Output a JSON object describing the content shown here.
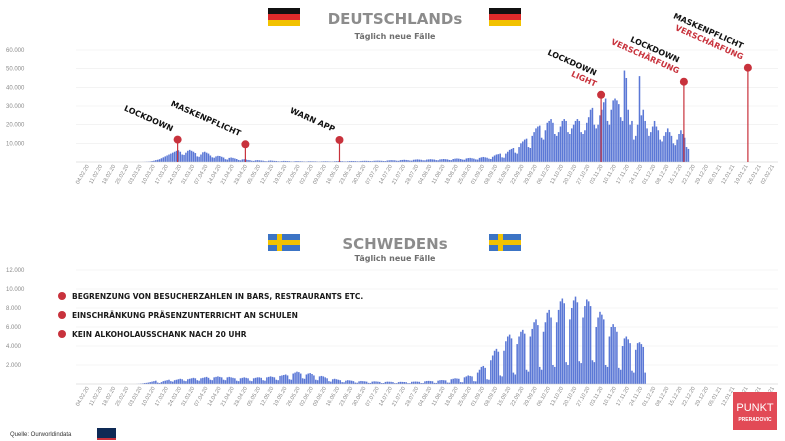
{
  "colors": {
    "bars": "#5b78d6",
    "marker": "#c8323c",
    "annotation_dark": "#111111",
    "annotation_red": "#c8323c",
    "logo_bg": "#e24a56"
  },
  "source_label": "Quelle: Ourworldindata",
  "logo": {
    "line1": "PUNKT",
    "line2": "PRERADOVIC"
  },
  "chart_data": [
    {
      "type": "bar",
      "title": "DEUTSCHLANDs",
      "subtitle": "Täglich neue Fälle",
      "flag": "germany",
      "ylim": [
        0,
        60000
      ],
      "yticks": [
        10000,
        20000,
        30000,
        40000,
        50000,
        60000
      ],
      "ytick_labels": [
        "10.000",
        "20.000",
        "30.000",
        "40.000",
        "50.000",
        "60.000"
      ],
      "x_range": [
        "2020-01-28",
        "2021-02-04"
      ],
      "xtick_labels": [
        "04.02.20",
        "11.02.20",
        "18.02.20",
        "25.02.20",
        "03.03.20",
        "10.03.20",
        "17.03.20",
        "24.03.20",
        "31.03.20",
        "07.04.20",
        "14.04.20",
        "21.04.20",
        "28.04.20",
        "05.05.20",
        "12.05.20",
        "19.05.20",
        "26.05.20",
        "02.06.20",
        "09.06.20",
        "16.06.20",
        "23.06.20",
        "30.06.20",
        "07.07.20",
        "14.07.20",
        "21.07.20",
        "28.07.20",
        "04.08.20",
        "11.08.20",
        "18.08.20",
        "25.08.20",
        "01.09.20",
        "08.09.20",
        "15.09.20",
        "22.09.20",
        "29.09.20",
        "06.10.20",
        "13.10.20",
        "20.10.20",
        "27.10.20",
        "03.11.20",
        "10.11.20",
        "17.11.20",
        "24.11.20",
        "01.12.20",
        "08.12.20",
        "15.12.20",
        "22.12.20",
        "29.12.20",
        "05.01.21",
        "12.01.21",
        "19.01.21",
        "26.01.21",
        "02.02.21"
      ],
      "series": [
        {
          "values": [
            0,
            0,
            0,
            0,
            0,
            0,
            0,
            0,
            0,
            0,
            0,
            0,
            0,
            0,
            0,
            0,
            0,
            0,
            0,
            0,
            0,
            0,
            0,
            0,
            0,
            0,
            0,
            0,
            0,
            0,
            0,
            0,
            10,
            20,
            30,
            50,
            80,
            150,
            200,
            300,
            500,
            700,
            1000,
            1200,
            1500,
            2000,
            2500,
            3000,
            3500,
            4000,
            4500,
            5000,
            5500,
            6000,
            6300,
            5500,
            4000,
            3800,
            5000,
            6000,
            6500,
            6000,
            5500,
            4800,
            3000,
            2800,
            4000,
            5200,
            5500,
            5000,
            4500,
            3500,
            2500,
            2300,
            3000,
            3300,
            3200,
            2800,
            2400,
            1500,
            1300,
            2200,
            2400,
            2200,
            1900,
            1600,
            1100,
            900,
            1400,
            1500,
            1300,
            1100,
            1000,
            700,
            600,
            900,
            1000,
            900,
            800,
            700,
            500,
            400,
            700,
            800,
            700,
            600,
            550,
            400,
            350,
            500,
            600,
            550,
            500,
            450,
            300,
            300,
            450,
            500,
            450,
            400,
            350,
            280,
            250,
            380,
            420,
            400,
            380,
            350,
            250,
            230,
            330,
            380,
            420,
            400,
            350,
            300,
            280,
            400,
            450,
            500,
            480,
            450,
            350,
            330,
            420,
            500,
            550,
            520,
            480,
            400,
            380,
            550,
            600,
            650,
            620,
            580,
            500,
            450,
            650,
            700,
            750,
            700,
            650,
            550,
            500,
            800,
            900,
            1000,
            950,
            900,
            700,
            650,
            1000,
            1100,
            1200,
            1100,
            1000,
            800,
            750,
            1200,
            1300,
            1400,
            1300,
            1200,
            950,
            900,
            1300,
            1400,
            1500,
            1400,
            1300,
            1000,
            950,
            1400,
            1500,
            1600,
            1500,
            1400,
            1100,
            1000,
            1600,
            1800,
            1900,
            1800,
            1600,
            1300,
            1200,
            1900,
            2100,
            2200,
            2000,
            1800,
            1400,
            1300,
            2200,
            2500,
            2700,
            2500,
            2300,
            1800,
            1600,
            2800,
            3500,
            4000,
            4200,
            4500,
            2500,
            2300,
            4500,
            5500,
            6500,
            7000,
            7500,
            5000,
            4500,
            8000,
            10000,
            11000,
            12000,
            12500,
            8000,
            7500,
            14000,
            16000,
            18000,
            19000,
            19500,
            13000,
            12000,
            17000,
            21000,
            22000,
            23000,
            21000,
            15000,
            14000,
            16000,
            19000,
            22000,
            23000,
            22000,
            16000,
            15000,
            18000,
            20000,
            22000,
            23000,
            22000,
            16000,
            15000,
            17000,
            21000,
            24000,
            28000,
            29000,
            20000,
            18000,
            20000,
            25000,
            28000,
            32000,
            34000,
            22000,
            20000,
            28000,
            33000,
            34000,
            33000,
            31000,
            24000,
            22000,
            49000,
            45000,
            28000,
            20000,
            22000,
            12000,
            14000,
            20000,
            46000,
            25000,
            28000,
            22000,
            18000,
            14000,
            16000,
            19000,
            22000,
            19000,
            17000,
            12000,
            11000,
            14000,
            16000,
            18000,
            16000,
            14000,
            10000,
            9000,
            12000,
            15000,
            17000,
            15000,
            13000,
            8000,
            7000
          ]
        }
      ],
      "annotations": [
        {
          "date": "2020-03-22",
          "value": 12000,
          "lines": [
            {
              "text": "LOCKDOWN",
              "color": "dark"
            }
          ]
        },
        {
          "date": "2020-04-27",
          "value": 9500,
          "lines": [
            {
              "text": "MASKENPFLICHT",
              "color": "dark"
            }
          ]
        },
        {
          "date": "2020-06-16",
          "value": 11800,
          "lines": [
            {
              "text": "WARN APP",
              "color": "dark"
            }
          ]
        },
        {
          "date": "2020-11-02",
          "value": 36000,
          "lines": [
            {
              "text": "LOCKDOWN",
              "color": "dark"
            },
            {
              "text": "LIGHT",
              "color": "red"
            }
          ]
        },
        {
          "date": "2020-12-16",
          "value": 43000,
          "lines": [
            {
              "text": "LOCKDOWN",
              "color": "dark"
            },
            {
              "text": "VERSCHÄRFUNG",
              "color": "red"
            }
          ]
        },
        {
          "date": "2021-01-19",
          "value": 50500,
          "lines": [
            {
              "text": "MASKENPFLICHT",
              "color": "dark"
            },
            {
              "text": "VERSCHÄRFUNG",
              "color": "red"
            }
          ]
        }
      ]
    },
    {
      "type": "bar",
      "title": "SCHWEDENs",
      "subtitle": "Täglich neue Fälle",
      "flag": "sweden",
      "ylim": [
        0,
        12000
      ],
      "yticks": [
        2000,
        4000,
        6000,
        8000,
        10000,
        12000
      ],
      "ytick_labels": [
        "2.000",
        "4.000",
        "6.000",
        "8.000",
        "10.000",
        "12.000"
      ],
      "x_range": [
        "2020-01-28",
        "2021-02-04"
      ],
      "xtick_labels": [
        "04.02.20",
        "11.02.20",
        "18.02.20",
        "25.02.20",
        "03.03.20",
        "10.03.20",
        "17.03.20",
        "24.03.20",
        "31.03.20",
        "07.04.20",
        "14.04.20",
        "21.04.20",
        "28.04.20",
        "05.05.20",
        "12.05.20",
        "19.05.20",
        "26.05.20",
        "02.06.20",
        "09.06.20",
        "16.06.20",
        "23.06.20",
        "30.06.20",
        "07.07.20",
        "14.07.20",
        "21.07.20",
        "28.07.20",
        "04.08.20",
        "11.08.20",
        "18.08.20",
        "25.08.20",
        "01.09.20",
        "08.09.20",
        "15.09.20",
        "22.09.20",
        "29.09.20",
        "06.10.20",
        "13.10.20",
        "20.10.20",
        "27.10.20",
        "03.11.20",
        "10.11.20",
        "17.11.20",
        "24.11.20",
        "01.12.20",
        "08.12.20",
        "15.12.20",
        "22.12.20",
        "29.12.20",
        "05.01.21",
        "12.01.21",
        "19.01.21",
        "26.01.21",
        "02.02.21"
      ],
      "series": [
        {
          "values": [
            0,
            0,
            0,
            0,
            0,
            0,
            0,
            0,
            0,
            0,
            0,
            0,
            0,
            0,
            0,
            0,
            0,
            0,
            0,
            0,
            0,
            0,
            0,
            0,
            0,
            0,
            0,
            0,
            0,
            0,
            0,
            0,
            10,
            20,
            40,
            60,
            100,
            120,
            150,
            200,
            250,
            300,
            350,
            150,
            100,
            200,
            300,
            350,
            400,
            450,
            300,
            250,
            400,
            450,
            500,
            550,
            500,
            350,
            300,
            500,
            550,
            600,
            650,
            600,
            400,
            350,
            600,
            650,
            700,
            750,
            650,
            450,
            400,
            700,
            750,
            800,
            750,
            700,
            450,
            400,
            700,
            750,
            700,
            650,
            600,
            350,
            300,
            600,
            650,
            700,
            650,
            600,
            350,
            300,
            600,
            650,
            700,
            700,
            650,
            400,
            350,
            700,
            750,
            800,
            750,
            700,
            450,
            400,
            850,
            900,
            950,
            1000,
            900,
            500,
            450,
            1100,
            1200,
            1300,
            1250,
            1100,
            600,
            550,
            1000,
            1100,
            1150,
            1050,
            900,
            450,
            400,
            800,
            850,
            800,
            700,
            600,
            300,
            250,
            500,
            550,
            500,
            450,
            400,
            200,
            180,
            350,
            400,
            380,
            350,
            300,
            150,
            130,
            280,
            320,
            300,
            280,
            250,
            120,
            110,
            250,
            280,
            270,
            250,
            220,
            100,
            100,
            220,
            250,
            240,
            230,
            200,
            90,
            90,
            200,
            230,
            220,
            210,
            190,
            90,
            90,
            230,
            250,
            260,
            250,
            230,
            100,
            100,
            280,
            320,
            330,
            310,
            290,
            120,
            110,
            350,
            400,
            420,
            400,
            380,
            150,
            140,
            500,
            550,
            600,
            580,
            550,
            200,
            180,
            700,
            800,
            900,
            850,
            800,
            300,
            280,
            1200,
            1500,
            1800,
            1900,
            1700,
            500,
            450,
            2500,
            3000,
            3500,
            3700,
            3400,
            900,
            800,
            3500,
            4500,
            5000,
            5200,
            4800,
            1200,
            1000,
            4200,
            5000,
            5500,
            5700,
            5300,
            1500,
            1300,
            5000,
            5800,
            6500,
            6800,
            6200,
            1800,
            1500,
            5500,
            6500,
            7500,
            7800,
            7000,
            2000,
            1800,
            6500,
            7800,
            8700,
            9000,
            8500,
            2300,
            2000,
            6800,
            8000,
            8800,
            9200,
            8600,
            2400,
            2200,
            7000,
            8200,
            8900,
            8700,
            8200,
            2500,
            2300,
            6000,
            7000,
            7600,
            7300,
            6800,
            2000,
            1800,
            5000,
            6000,
            6300,
            6000,
            5500,
            1700,
            1500,
            4000,
            4800,
            5000,
            4700,
            4300,
            1400,
            1200,
            3600,
            4300,
            4400,
            4200,
            3900,
            1200
          ]
        }
      ],
      "legend": [
        "BEGRENZUNG VON BESUCHERZAHLEN IN BARS, RESTRAURANTS ETC.",
        "EINSCHRÄNKUNG PRÄSENZUNTERRICHT AN SCHULEN",
        "KEIN ALKOHOLAUSSCHANK NACH 20 UHR"
      ]
    }
  ]
}
